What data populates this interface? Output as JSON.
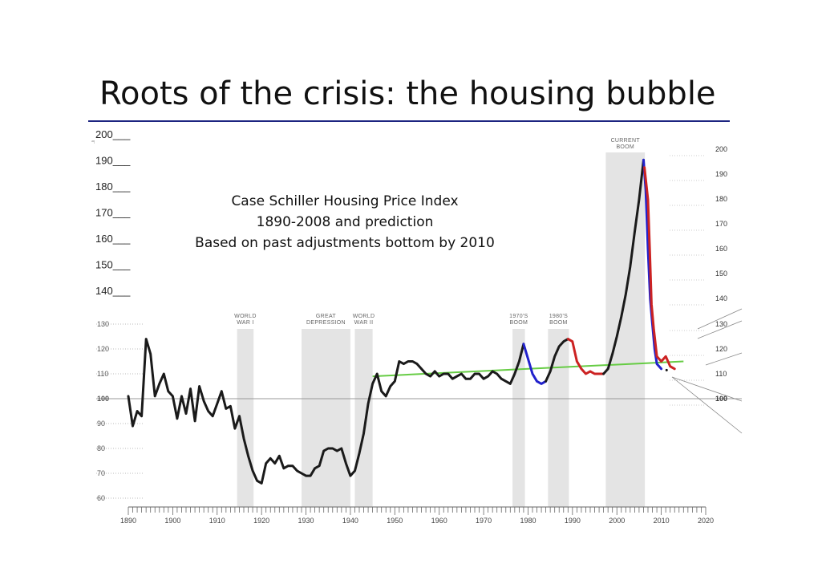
{
  "slide": {
    "title": "Roots of the crisis: the housing bubble"
  },
  "chart_data": {
    "type": "line",
    "subtitle_lines": [
      "Case Schiller Housing Price Index",
      "1890-2008 and prediction",
      "Based on past adjustments bottom by 2010"
    ],
    "x_ticks": [
      1890,
      1900,
      1910,
      1920,
      1930,
      1940,
      1950,
      1960,
      1970,
      1980,
      1990,
      2000,
      2010,
      2020
    ],
    "y_ticks_inner": [
      130,
      120,
      110,
      100,
      90,
      80,
      70,
      60
    ],
    "y_ticks_left_overlay": [
      "200___",
      "190___",
      "180___",
      "170___",
      "160___",
      "150___",
      "140___"
    ],
    "y_ticks_right": [
      200,
      190,
      180,
      170,
      160,
      150,
      140,
      130,
      120,
      110,
      100
    ],
    "xlim": [
      1890,
      2020
    ],
    "ylim": [
      60,
      200
    ],
    "shaded_periods": [
      {
        "label": [
          "WORLD",
          "WAR I"
        ],
        "start": 1914.5,
        "end": 1918.2
      },
      {
        "label": [
          "GREAT",
          "DEPRESSION"
        ],
        "start": 1929,
        "end": 1940
      },
      {
        "label": [
          "WORLD",
          "WAR II"
        ],
        "start": 1941,
        "end": 1945
      },
      {
        "label": [
          "1970'S",
          "BOOM"
        ],
        "start": 1976.5,
        "end": 1979.3
      },
      {
        "label": [
          "1980'S",
          "BOOM"
        ],
        "start": 1984.5,
        "end": 1989.2
      },
      {
        "label": [
          "CURRENT",
          "BOOM"
        ],
        "start": 1997.5,
        "end": 2006.3
      }
    ],
    "series": [
      {
        "color": "#1a1a1a",
        "points": [
          [
            1890,
            101
          ],
          [
            1891,
            89
          ],
          [
            1892,
            95
          ],
          [
            1893,
            93
          ],
          [
            1894,
            124
          ],
          [
            1895,
            118
          ],
          [
            1896,
            101
          ],
          [
            1897,
            106
          ],
          [
            1898,
            110
          ],
          [
            1899,
            103
          ],
          [
            1900,
            101
          ],
          [
            1901,
            92
          ],
          [
            1902,
            101
          ],
          [
            1903,
            94
          ],
          [
            1904,
            104
          ],
          [
            1905,
            91
          ],
          [
            1906,
            105
          ],
          [
            1907,
            99
          ],
          [
            1908,
            95
          ],
          [
            1909,
            93
          ],
          [
            1910,
            98
          ],
          [
            1911,
            103
          ],
          [
            1912,
            96
          ],
          [
            1913,
            97
          ],
          [
            1914,
            88
          ],
          [
            1915,
            93
          ],
          [
            1916,
            84
          ],
          [
            1917,
            77
          ],
          [
            1918,
            71
          ],
          [
            1919,
            67
          ],
          [
            1920,
            66
          ],
          [
            1921,
            74
          ],
          [
            1922,
            76
          ],
          [
            1923,
            74
          ],
          [
            1924,
            77
          ],
          [
            1925,
            72
          ],
          [
            1926,
            73
          ],
          [
            1927,
            73
          ],
          [
            1928,
            71
          ],
          [
            1929,
            70
          ],
          [
            1930,
            69
          ],
          [
            1931,
            69
          ],
          [
            1932,
            72
          ],
          [
            1933,
            73
          ],
          [
            1934,
            79
          ],
          [
            1935,
            80
          ],
          [
            1936,
            80
          ],
          [
            1937,
            79
          ],
          [
            1938,
            80
          ],
          [
            1939,
            74
          ],
          [
            1940,
            69
          ],
          [
            1941,
            71
          ],
          [
            1942,
            78
          ],
          [
            1943,
            86
          ],
          [
            1944,
            98
          ],
          [
            1945,
            106
          ],
          [
            1946,
            110
          ],
          [
            1947,
            103
          ],
          [
            1948,
            101
          ],
          [
            1949,
            105
          ],
          [
            1950,
            107
          ],
          [
            1951,
            115
          ],
          [
            1952,
            114
          ],
          [
            1953,
            115
          ],
          [
            1954,
            115
          ],
          [
            1955,
            114
          ],
          [
            1956,
            112
          ],
          [
            1957,
            110
          ],
          [
            1958,
            109
          ],
          [
            1959,
            111
          ],
          [
            1960,
            109
          ],
          [
            1961,
            110
          ],
          [
            1962,
            110
          ],
          [
            1963,
            108
          ],
          [
            1964,
            109
          ],
          [
            1965,
            110
          ],
          [
            1966,
            108
          ],
          [
            1967,
            108
          ],
          [
            1968,
            110
          ],
          [
            1969,
            110
          ],
          [
            1970,
            108
          ],
          [
            1971,
            109
          ],
          [
            1972,
            111
          ],
          [
            1973,
            110
          ],
          [
            1974,
            108
          ],
          [
            1975,
            107
          ],
          [
            1976,
            106
          ],
          [
            1977,
            110
          ],
          [
            1978,
            115
          ],
          [
            1979,
            122
          ]
        ]
      },
      {
        "color": "#2222cc",
        "points": [
          [
            1979,
            122
          ],
          [
            1980,
            116
          ],
          [
            1981,
            110
          ],
          [
            1982,
            107
          ],
          [
            1983,
            106
          ],
          [
            1984,
            107
          ]
        ]
      },
      {
        "color": "#1a1a1a",
        "points": [
          [
            1984,
            107
          ],
          [
            1985,
            111
          ],
          [
            1986,
            117
          ],
          [
            1987,
            121
          ],
          [
            1988,
            123
          ],
          [
            1989,
            124
          ]
        ]
      },
      {
        "color": "#cc2222",
        "points": [
          [
            1989,
            124
          ],
          [
            1990,
            123
          ],
          [
            1991,
            115
          ],
          [
            1992,
            112
          ],
          [
            1993,
            110
          ],
          [
            1994,
            111
          ],
          [
            1995,
            110
          ],
          [
            1996,
            110
          ],
          [
            1997,
            110
          ]
        ]
      },
      {
        "color": "#1a1a1a",
        "points": [
          [
            1997,
            110
          ],
          [
            1998,
            112
          ],
          [
            1999,
            118
          ],
          [
            2000,
            125
          ],
          [
            2001,
            133
          ],
          [
            2002,
            142
          ],
          [
            2003,
            153
          ],
          [
            2004,
            167
          ],
          [
            2005,
            180
          ],
          [
            2006,
            196
          ]
        ]
      },
      {
        "color": "#2222cc",
        "points": [
          [
            2006,
            196
          ],
          [
            2006.5,
            184
          ],
          [
            2007,
            160
          ],
          [
            2007.5,
            140
          ],
          [
            2008,
            130
          ],
          [
            2008.5,
            120
          ],
          [
            2009,
            114
          ],
          [
            2010,
            112
          ]
        ]
      },
      {
        "color": "#cc2222",
        "points": [
          [
            2006.2,
            193
          ],
          [
            2007,
            180
          ],
          [
            2007.4,
            160
          ],
          [
            2007.8,
            138
          ],
          [
            2008.3,
            128
          ],
          [
            2009,
            117
          ],
          [
            2010,
            115
          ],
          [
            2011,
            117
          ],
          [
            2012,
            113
          ],
          [
            2013,
            112
          ]
        ]
      }
    ],
    "trend_line": {
      "color": "#66cc44",
      "points": [
        [
          1945,
          109
        ],
        [
          2015,
          115
        ]
      ]
    },
    "grid": true,
    "annotations": []
  }
}
